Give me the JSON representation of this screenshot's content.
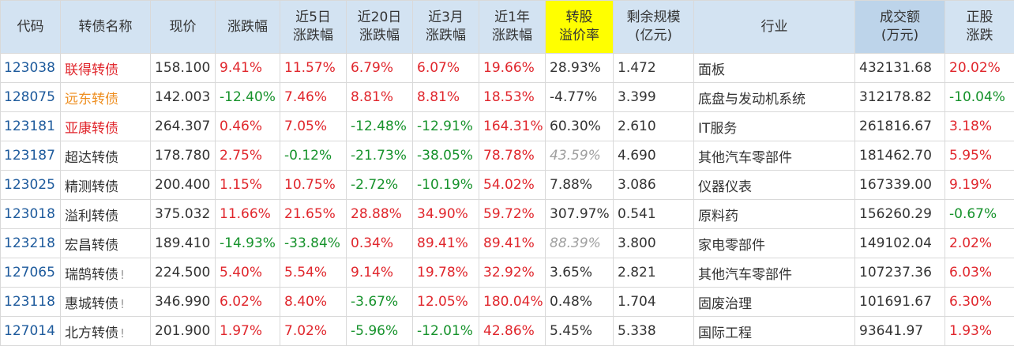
{
  "colors": {
    "header_bg": "#d3e3f2",
    "highlight_header": "#ffff00",
    "up": "#e0262c",
    "down": "#16922b",
    "orange": "#ee8e1f",
    "code": "#1d5a9c"
  },
  "columns": [
    {
      "l1": "代码",
      "l2": ""
    },
    {
      "l1": "转债名称",
      "l2": ""
    },
    {
      "l1": "现价",
      "l2": ""
    },
    {
      "l1": "涨跌幅",
      "l2": ""
    },
    {
      "l1": "近5日",
      "l2": "涨跌幅"
    },
    {
      "l1": "近20日",
      "l2": "涨跌幅"
    },
    {
      "l1": "近3月",
      "l2": "涨跌幅"
    },
    {
      "l1": "近1年",
      "l2": "涨跌幅"
    },
    {
      "l1": "转股",
      "l2": "溢价率"
    },
    {
      "l1": "剩余规模",
      "l2": "(亿元)"
    },
    {
      "l1": "行业",
      "l2": ""
    },
    {
      "l1": "成交额",
      "l2": "(万元)"
    },
    {
      "l1": "正股",
      "l2": "涨跌"
    }
  ],
  "rows": [
    {
      "code": "123038",
      "name": "联得转债",
      "name_color": "up",
      "flag": "",
      "price": "158.100",
      "chg": "9.41%",
      "chg5": "11.57%",
      "chg20": "6.79%",
      "chg3m": "6.07%",
      "chg1y": "19.66%",
      "premium": "28.93%",
      "premium_muted": false,
      "remain": "1.472",
      "industry": "面板",
      "volume": "432131.68",
      "stock_chg": "20.02%"
    },
    {
      "code": "128075",
      "name": "远东转债",
      "name_color": "orange",
      "flag": "",
      "price": "142.003",
      "chg": "-12.40%",
      "chg5": "7.46%",
      "chg20": "8.81%",
      "chg3m": "8.81%",
      "chg1y": "18.53%",
      "premium": "-4.77%",
      "premium_muted": false,
      "remain": "3.399",
      "industry": "底盘与发动机系统",
      "volume": "312178.82",
      "stock_chg": "-10.04%"
    },
    {
      "code": "123181",
      "name": "亚康转债",
      "name_color": "up",
      "flag": "",
      "price": "264.307",
      "chg": "0.46%",
      "chg5": "7.05%",
      "chg20": "-12.48%",
      "chg3m": "-12.91%",
      "chg1y": "164.31%",
      "premium": "60.30%",
      "premium_muted": false,
      "remain": "2.610",
      "industry": "IT服务",
      "volume": "261816.67",
      "stock_chg": "3.18%"
    },
    {
      "code": "123187",
      "name": "超达转债",
      "name_color": "neutral",
      "flag": "",
      "price": "178.780",
      "chg": "2.75%",
      "chg5": "-0.12%",
      "chg20": "-21.73%",
      "chg3m": "-38.05%",
      "chg1y": "78.78%",
      "premium": "43.59%",
      "premium_muted": true,
      "remain": "4.690",
      "industry": "其他汽车零部件",
      "volume": "181462.70",
      "stock_chg": "5.95%"
    },
    {
      "code": "123025",
      "name": "精测转债",
      "name_color": "neutral",
      "flag": "",
      "price": "200.400",
      "chg": "1.15%",
      "chg5": "10.75%",
      "chg20": "-2.72%",
      "chg3m": "-10.19%",
      "chg1y": "54.02%",
      "premium": "7.88%",
      "premium_muted": false,
      "remain": "3.086",
      "industry": "仪器仪表",
      "volume": "167339.00",
      "stock_chg": "9.19%"
    },
    {
      "code": "123018",
      "name": "溢利转债",
      "name_color": "neutral",
      "flag": "",
      "price": "375.032",
      "chg": "11.66%",
      "chg5": "21.65%",
      "chg20": "28.88%",
      "chg3m": "34.90%",
      "chg1y": "59.72%",
      "premium": "307.97%",
      "premium_muted": false,
      "remain": "0.541",
      "industry": "原料药",
      "volume": "156260.29",
      "stock_chg": "-0.67%"
    },
    {
      "code": "123218",
      "name": "宏昌转债",
      "name_color": "neutral",
      "flag": "",
      "price": "189.410",
      "chg": "-14.93%",
      "chg5": "-33.84%",
      "chg20": "0.34%",
      "chg3m": "89.41%",
      "chg1y": "89.41%",
      "premium": "88.39%",
      "premium_muted": true,
      "remain": "3.800",
      "industry": "家电零部件",
      "volume": "149102.04",
      "stock_chg": "2.02%"
    },
    {
      "code": "127065",
      "name": "瑞鹄转债",
      "name_color": "neutral",
      "flag": "!",
      "price": "224.500",
      "chg": "5.40%",
      "chg5": "5.54%",
      "chg20": "9.14%",
      "chg3m": "19.78%",
      "chg1y": "32.92%",
      "premium": "3.65%",
      "premium_muted": false,
      "remain": "2.821",
      "industry": "其他汽车零部件",
      "volume": "107237.36",
      "stock_chg": "6.03%"
    },
    {
      "code": "123118",
      "name": "惠城转债",
      "name_color": "neutral",
      "flag": "!",
      "price": "346.990",
      "chg": "6.02%",
      "chg5": "8.40%",
      "chg20": "-3.67%",
      "chg3m": "12.05%",
      "chg1y": "180.04%",
      "premium": "0.48%",
      "premium_muted": false,
      "remain": "1.704",
      "industry": "固废治理",
      "volume": "101691.67",
      "stock_chg": "6.30%"
    },
    {
      "code": "127014",
      "name": "北方转债",
      "name_color": "neutral",
      "flag": "!",
      "price": "201.900",
      "chg": "1.97%",
      "chg5": "7.02%",
      "chg20": "-5.96%",
      "chg3m": "-12.01%",
      "chg1y": "42.86%",
      "premium": "5.45%",
      "premium_muted": false,
      "remain": "5.338",
      "industry": "国际工程",
      "volume": "93641.97",
      "stock_chg": "1.93%"
    }
  ]
}
